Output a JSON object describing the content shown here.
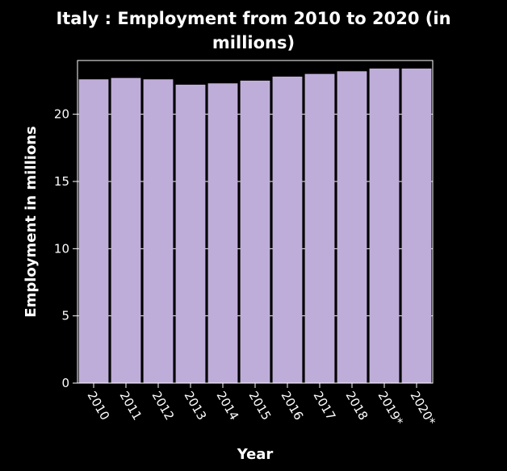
{
  "chart_data": {
    "type": "bar",
    "title_line1": "Italy : Employment from 2010 to 2020 (in",
    "title_line2": "millions)",
    "xlabel": "Year",
    "ylabel": "Employment in millions",
    "categories": [
      "2010",
      "2011",
      "2012",
      "2013",
      "2014",
      "2015",
      "2016",
      "2017",
      "2018",
      "2019*",
      "2020*"
    ],
    "values": [
      22.6,
      22.7,
      22.6,
      22.2,
      22.3,
      22.5,
      22.8,
      23.0,
      23.2,
      23.4,
      23.4
    ],
    "ylim": [
      0,
      24
    ],
    "yticks": [
      "0",
      "5",
      "10",
      "15",
      "20"
    ],
    "ytick_values": [
      0,
      5,
      10,
      15,
      20
    ],
    "grid": true,
    "bar_color": "#bfadd9",
    "background": "#000000",
    "grid_color": "#ffffff"
  }
}
